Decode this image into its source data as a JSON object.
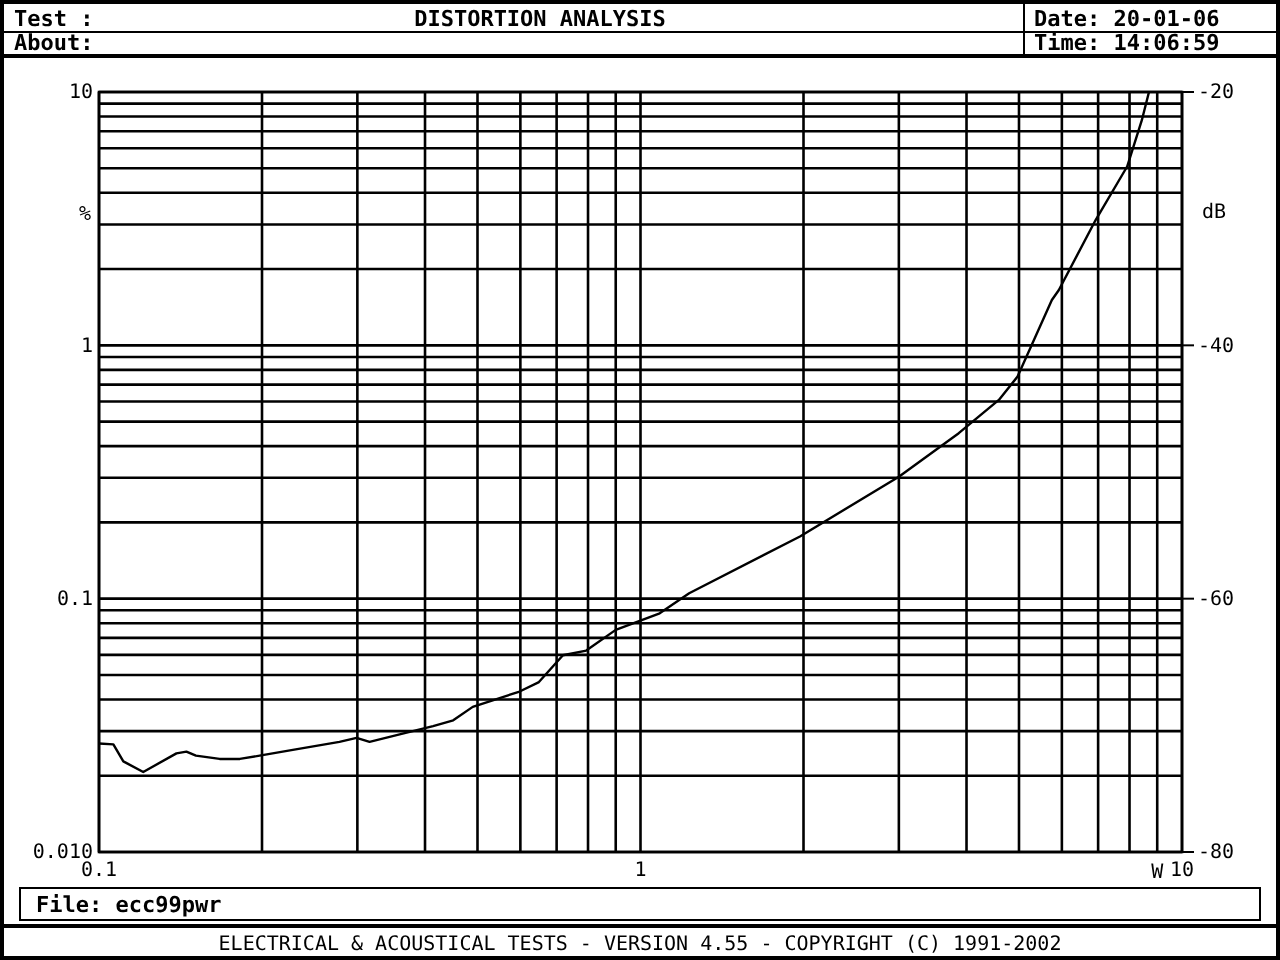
{
  "chart_data": {
    "type": "line",
    "title": "DISTORTION ANALYSIS",
    "xlabel": "W",
    "ylabel": "%",
    "y2label": "dB",
    "log": "xy",
    "grid": true,
    "marker": "none",
    "line_style": "solid",
    "x": [
      0.1,
      0.1063,
      0.1109,
      0.1207,
      0.139,
      0.145,
      0.151,
      0.167,
      0.182,
      0.198,
      0.228,
      0.278,
      0.299,
      0.316,
      0.37,
      0.414,
      0.451,
      0.49,
      0.598,
      0.648,
      0.719,
      0.794,
      0.9,
      1.085,
      1.23,
      1.97,
      3.0,
      3.87,
      4.59,
      4.97,
      5.75,
      5.92,
      6.93,
      7.92,
      8.43,
      8.69
    ],
    "series": [
      {
        "color": "#000000",
        "values": [
          0.0268,
          0.0266,
          0.0228,
          0.0207,
          0.0245,
          0.0249,
          0.024,
          0.0233,
          0.0233,
          0.024,
          0.0253,
          0.0272,
          0.0282,
          0.0272,
          0.0296,
          0.0314,
          0.0331,
          0.0374,
          0.043,
          0.0467,
          0.0598,
          0.0624,
          0.0753,
          0.0875,
          0.105,
          0.176,
          0.303,
          0.45,
          0.609,
          0.753,
          1.51,
          1.65,
          3.13,
          5.08,
          7.74,
          10
        ]
      }
    ],
    "xlim": [
      0.1,
      10
    ],
    "xticks": [
      0.1,
      {
        "value": 0.2,
        "label": null
      },
      {
        "value": 0.3,
        "label": null
      },
      {
        "value": 0.4,
        "label": null
      },
      {
        "value": 0.5,
        "label": null
      },
      {
        "value": 0.6,
        "label": null
      },
      {
        "value": 0.7,
        "label": null
      },
      {
        "value": 0.8,
        "label": null
      },
      {
        "value": 0.9,
        "label": null
      },
      1,
      {
        "value": 2,
        "label": null
      },
      {
        "value": 3,
        "label": null
      },
      {
        "value": 4,
        "label": null
      },
      {
        "value": 5,
        "label": null
      },
      {
        "value": 6,
        "label": null
      },
      {
        "value": 7,
        "label": null
      },
      {
        "value": 8,
        "label": null
      },
      {
        "value": 9,
        "label": null
      },
      10
    ],
    "ylim": [
      0.01,
      10
    ],
    "yticks": [
      {
        "value": 0.01,
        "label": "0.010"
      },
      {
        "value": 0.02,
        "label": null
      },
      {
        "value": 0.03,
        "label": null
      },
      {
        "value": 0.04,
        "label": null
      },
      {
        "value": 0.05,
        "label": null
      },
      {
        "value": 0.06,
        "label": null
      },
      {
        "value": 0.07,
        "label": null
      },
      {
        "value": 0.08,
        "label": null
      },
      {
        "value": 0.09,
        "label": null
      },
      0.1,
      {
        "value": 0.2,
        "label": null
      },
      {
        "value": 0.3,
        "label": null
      },
      {
        "value": 0.4,
        "label": null
      },
      {
        "value": 0.5,
        "label": null
      },
      {
        "value": 0.6,
        "label": null
      },
      {
        "value": 0.7,
        "label": null
      },
      {
        "value": 0.8,
        "label": null
      },
      {
        "value": 0.9,
        "label": null
      },
      1,
      {
        "value": 2,
        "label": null
      },
      {
        "value": 3,
        "label": null
      },
      {
        "value": 4,
        "label": null
      },
      {
        "value": 5,
        "label": null
      },
      {
        "value": 6,
        "label": null
      },
      {
        "value": 7,
        "label": null
      },
      {
        "value": 8,
        "label": null
      },
      {
        "value": 9,
        "label": null
      },
      10
    ],
    "y2lim": [
      -80,
      -20
    ],
    "y2ticks": [
      -80,
      -60,
      -40,
      -20
    ],
    "annotations": [
      "Test :",
      "About:",
      "Date: 20-01-06",
      "Time: 14:06:59",
      "File: ecc99pwr",
      "ELECTRICAL & ACOUSTICAL TESTS  -  VERSION 4.55  -  COPYRIGHT (C) 1991-2002"
    ]
  }
}
